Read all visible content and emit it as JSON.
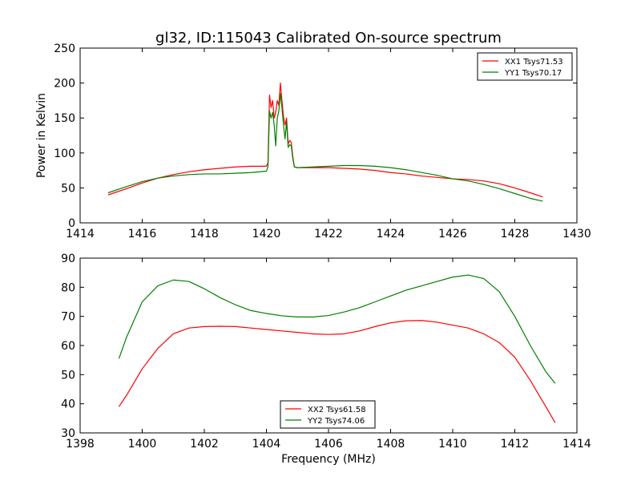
{
  "figure": {
    "title": "gl32, ID:115043 Calibrated On-source spectrum",
    "xlabel": "Frequency (MHz)"
  },
  "chart_data": [
    {
      "type": "line",
      "title": "gl32, ID:115043 Calibrated On-source spectrum",
      "xlabel": "",
      "ylabel": "Power in Kelvin",
      "xlim": [
        1414,
        1430
      ],
      "ylim": [
        0,
        250
      ],
      "xticks": [
        1414,
        1416,
        1418,
        1420,
        1422,
        1424,
        1426,
        1428,
        1430
      ],
      "yticks": [
        0,
        50,
        100,
        150,
        200,
        250
      ],
      "legend_position": "top-right",
      "grid": false,
      "series": [
        {
          "name": "XX1 Tsys71.53",
          "color": "#ff0000",
          "x": [
            1414.9,
            1415.5,
            1416.0,
            1416.5,
            1417.0,
            1417.5,
            1418.0,
            1418.5,
            1419.0,
            1419.5,
            1420.0,
            1420.05,
            1420.1,
            1420.15,
            1420.2,
            1420.25,
            1420.3,
            1420.35,
            1420.4,
            1420.45,
            1420.5,
            1420.55,
            1420.6,
            1420.65,
            1420.7,
            1420.75,
            1420.8,
            1420.85,
            1420.9,
            1421.0,
            1421.5,
            1422.0,
            1422.5,
            1423.0,
            1423.5,
            1424.0,
            1424.5,
            1425.0,
            1425.5,
            1426.0,
            1426.5,
            1427.0,
            1427.5,
            1428.0,
            1428.5,
            1428.9
          ],
          "y": [
            40,
            49,
            57,
            64,
            69,
            73,
            76,
            78,
            80,
            81,
            81,
            86,
            183,
            165,
            175,
            150,
            158,
            175,
            168,
            200,
            175,
            152,
            140,
            150,
            113,
            118,
            115,
            95,
            80,
            79,
            79,
            79,
            78,
            77,
            75,
            72,
            70,
            67,
            65,
            63,
            62,
            60,
            56,
            50,
            43,
            37
          ]
        },
        {
          "name": "YY1 Tsys70.17",
          "color": "#008000",
          "x": [
            1414.9,
            1415.5,
            1416.0,
            1416.5,
            1417.0,
            1417.5,
            1418.0,
            1418.5,
            1419.0,
            1419.5,
            1420.0,
            1420.05,
            1420.1,
            1420.15,
            1420.2,
            1420.25,
            1420.3,
            1420.35,
            1420.4,
            1420.45,
            1420.5,
            1420.55,
            1420.6,
            1420.65,
            1420.7,
            1420.75,
            1420.8,
            1420.85,
            1420.9,
            1421.0,
            1421.5,
            1422.0,
            1422.5,
            1423.0,
            1423.5,
            1424.0,
            1424.5,
            1425.0,
            1425.5,
            1426.0,
            1426.5,
            1427.0,
            1427.5,
            1428.0,
            1428.5,
            1428.9
          ],
          "y": [
            43,
            52,
            59,
            64,
            67,
            69,
            70,
            70,
            71,
            72,
            74,
            80,
            160,
            150,
            158,
            140,
            110,
            150,
            160,
            185,
            165,
            140,
            120,
            145,
            108,
            112,
            110,
            92,
            80,
            79,
            80,
            81,
            82,
            82,
            81,
            79,
            76,
            72,
            68,
            63,
            60,
            55,
            49,
            42,
            35,
            31
          ]
        }
      ]
    },
    {
      "type": "line",
      "title": "",
      "xlabel": "Frequency (MHz)",
      "ylabel": "",
      "xlim": [
        1398,
        1414
      ],
      "ylim": [
        30,
        90
      ],
      "xticks": [
        1398,
        1400,
        1402,
        1404,
        1406,
        1408,
        1410,
        1412,
        1414
      ],
      "yticks": [
        30,
        40,
        50,
        60,
        70,
        80,
        90
      ],
      "legend_position": "bottom-center",
      "grid": false,
      "series": [
        {
          "name": "XX2 Tsys61.58",
          "color": "#ff0000",
          "x": [
            1399.25,
            1399.5,
            1400.0,
            1400.5,
            1401.0,
            1401.5,
            1402.0,
            1402.5,
            1403.0,
            1403.5,
            1404.0,
            1404.5,
            1405.0,
            1405.5,
            1406.0,
            1406.5,
            1407.0,
            1407.5,
            1408.0,
            1408.5,
            1409.0,
            1409.5,
            1410.0,
            1410.5,
            1411.0,
            1411.5,
            1412.0,
            1412.5,
            1413.0,
            1413.3
          ],
          "y": [
            39,
            43,
            52,
            59,
            64,
            66,
            66.5,
            66.6,
            66.5,
            66,
            65.5,
            65,
            64.5,
            64,
            63.8,
            64,
            65,
            66.5,
            67.8,
            68.5,
            68.6,
            68,
            67,
            66,
            64,
            61,
            56,
            48,
            39,
            33.5
          ]
        },
        {
          "name": "YY2 Tsys74.06",
          "color": "#008000",
          "x": [
            1399.25,
            1399.5,
            1400.0,
            1400.5,
            1401.0,
            1401.5,
            1402.0,
            1402.5,
            1403.0,
            1403.5,
            1404.0,
            1404.5,
            1405.0,
            1405.5,
            1406.0,
            1406.5,
            1407.0,
            1407.5,
            1408.0,
            1408.5,
            1409.0,
            1409.5,
            1410.0,
            1410.5,
            1411.0,
            1411.5,
            1412.0,
            1412.5,
            1413.0,
            1413.3
          ],
          "y": [
            55.5,
            63,
            75,
            80.5,
            82.5,
            82,
            79.5,
            76.5,
            74,
            72,
            71,
            70.2,
            69.8,
            69.8,
            70.3,
            71.5,
            73,
            75,
            77,
            79,
            80.5,
            82,
            83.5,
            84.2,
            83,
            78.5,
            70,
            60,
            51,
            47
          ]
        }
      ]
    }
  ]
}
